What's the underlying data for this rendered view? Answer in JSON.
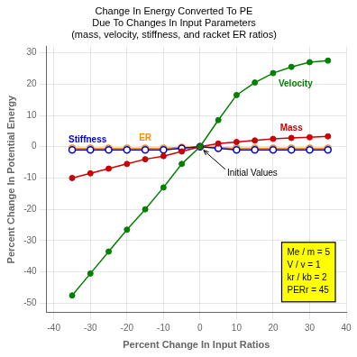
{
  "chart_data": {
    "type": "line",
    "title": [
      "Change In Energy Converted To PE",
      "Due To Changes In Input Parameters",
      "(mass, velocity, stiffness, and racket ER ratios)"
    ],
    "xlabel": "Percent Change In Input Ratios",
    "ylabel": "Percent Change In Potential Energy",
    "x": [
      -35,
      -30,
      -25,
      -20,
      -15,
      -10,
      -5,
      0,
      5,
      10,
      15,
      20,
      25,
      30,
      35
    ],
    "series": [
      {
        "name": "Velocity",
        "color": "#008000",
        "marker": "circle",
        "values": [
          -47.5,
          -40.5,
          -33.5,
          -26.5,
          -20.0,
          -13.0,
          -5.5,
          0.0,
          8.5,
          16.5,
          20.5,
          23.5,
          25.5,
          27.0,
          27.5
        ]
      },
      {
        "name": "Mass",
        "color": "#cc0000",
        "marker": "circle",
        "values": [
          -10.0,
          -8.5,
          -7.0,
          -5.5,
          -4.0,
          -3.0,
          -1.5,
          0.0,
          1.0,
          1.5,
          2.0,
          2.5,
          2.8,
          3.0,
          3.3
        ]
      },
      {
        "name": "Stiffness",
        "color": "#0000cc",
        "marker": "circle_open",
        "values": [
          -1.0,
          -1.0,
          -1.0,
          -1.0,
          -1.0,
          -1.0,
          -0.5,
          0.0,
          -0.5,
          -1.0,
          -1.0,
          -1.0,
          -1.0,
          -1.0,
          -1.0
        ]
      },
      {
        "name": "ER",
        "color": "#ff8c00",
        "marker": "circle_open",
        "values": [
          -0.5,
          -0.5,
          -0.5,
          -0.5,
          -0.5,
          -0.5,
          -0.2,
          0.0,
          -0.2,
          -0.5,
          -0.5,
          -0.5,
          -0.5,
          -0.5,
          -0.5
        ]
      }
    ],
    "xlim": [
      -42,
      40
    ],
    "ylim": [
      -53,
      32
    ],
    "xticks": [
      -40,
      -30,
      -20,
      -10,
      0,
      10,
      20,
      30,
      40
    ],
    "yticks": [
      -50,
      -40,
      -30,
      -20,
      -10,
      0,
      10,
      20,
      30
    ],
    "grid": true,
    "annotations": [
      "Initial Values",
      "Me / m = 5\nV / v = 1\nkr / kb = 2\nPERr = 45"
    ]
  }
}
